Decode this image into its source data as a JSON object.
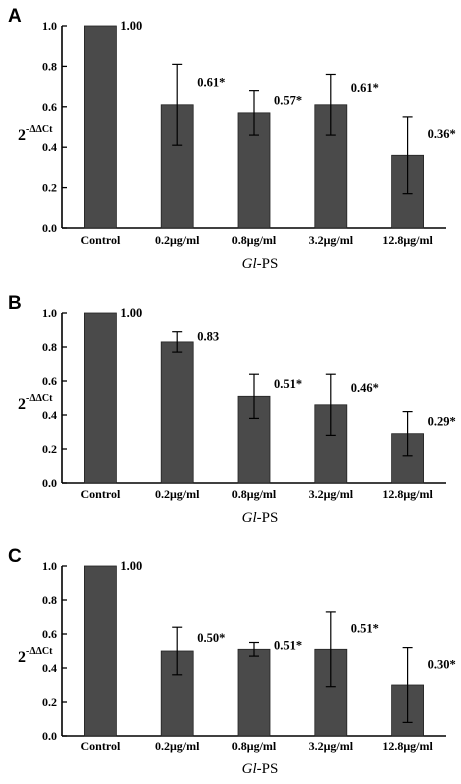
{
  "chart_data": [
    {
      "type": "bar",
      "panel": "A",
      "categories": [
        "Control",
        "0.2μg/ml",
        "0.8μg/ml",
        "3.2μg/ml",
        "12.8μg/ml"
      ],
      "values": [
        1.0,
        0.61,
        0.57,
        0.61,
        0.36
      ],
      "error": [
        null,
        0.2,
        0.11,
        0.15,
        0.19
      ],
      "data_labels": [
        "1.00",
        "0.61*",
        "0.57*",
        "0.61*",
        "0.36*"
      ],
      "ylabel": "2-ΔΔCt",
      "xlabel": "Gl-PS",
      "ylim": [
        0,
        1.0
      ],
      "yticks": [
        "0.0",
        "0.2",
        "0.4",
        "0.6",
        "0.8",
        "1.0"
      ],
      "grid": false,
      "bar_color": "#4a4a4a"
    },
    {
      "type": "bar",
      "panel": "B",
      "categories": [
        "Control",
        "0.2μg/ml",
        "0.8μg/ml",
        "3.2μg/ml",
        "12.8μg/ml"
      ],
      "values": [
        1.0,
        0.83,
        0.51,
        0.46,
        0.29
      ],
      "error": [
        null,
        0.06,
        0.13,
        0.18,
        0.13
      ],
      "data_labels": [
        "1.00",
        "0.83",
        "0.51*",
        "0.46*",
        "0.29*"
      ],
      "ylabel": "2-ΔΔCt",
      "xlabel": "Gl-PS",
      "ylim": [
        0,
        1.0
      ],
      "yticks": [
        "0.0",
        "0.2",
        "0.4",
        "0.6",
        "0.8",
        "1.0"
      ],
      "grid": false,
      "bar_color": "#4a4a4a"
    },
    {
      "type": "bar",
      "panel": "C",
      "categories": [
        "Control",
        "0.2μg/ml",
        "0.8μg/ml",
        "3.2μg/ml",
        "12.8μg/ml"
      ],
      "values": [
        1.0,
        0.5,
        0.51,
        0.51,
        0.3
      ],
      "error": [
        null,
        0.14,
        0.04,
        0.22,
        0.22
      ],
      "data_labels": [
        "1.00",
        "0.50*",
        "0.51*",
        "0.51*",
        "0.30*"
      ],
      "ylabel": "2-ΔΔCt",
      "xlabel": "Gl-PS",
      "ylim": [
        0,
        1.0
      ],
      "yticks": [
        "0.0",
        "0.2",
        "0.4",
        "0.6",
        "0.8",
        "1.0"
      ],
      "grid": false,
      "bar_color": "#4a4a4a"
    }
  ]
}
